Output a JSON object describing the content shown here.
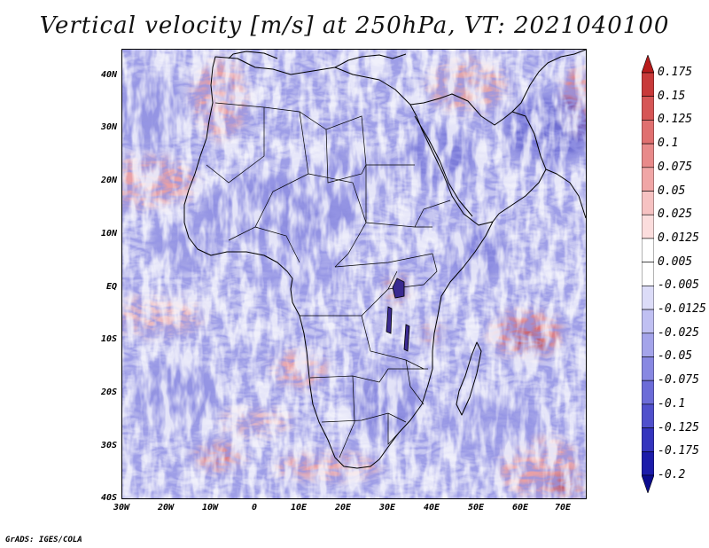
{
  "title": "Vertical velocity [m/s] at 250hPa, VT: 2021040100",
  "credit": "GrADS: IGES/COLA",
  "latitude_labels": [
    "40N",
    "30N",
    "20N",
    "10N",
    "EQ",
    "10S",
    "20S",
    "30S",
    "40S"
  ],
  "longitude_labels": [
    "30W",
    "20W",
    "10W",
    "0",
    "10E",
    "20E",
    "30E",
    "40E",
    "50E",
    "60E",
    "70E"
  ],
  "colorbar": {
    "labels": [
      "0.175",
      "0.15",
      "0.125",
      "0.1",
      "0.075",
      "0.05",
      "0.025",
      "0.0125",
      "0.005",
      "-0.005",
      "-0.0125",
      "-0.025",
      "-0.05",
      "-0.075",
      "-0.1",
      "-0.125",
      "-0.175",
      "-0.2"
    ],
    "colors": [
      "#b81c1c",
      "#c83a3a",
      "#d65656",
      "#e07070",
      "#e88a8a",
      "#f0a6a6",
      "#f6c2c2",
      "#fbdddd",
      "#ffffff",
      "#ffffff",
      "#dcdcf8",
      "#c0c0f2",
      "#a4a4ea",
      "#8888e2",
      "#6c6cd8",
      "#5050cc",
      "#3434be",
      "#1c1caa",
      "#0c0c8e"
    ]
  },
  "map_colors": {
    "background": "#c9c9f2",
    "strong_up": "#b02020",
    "up": "#e88a8a",
    "down": "#5555cc",
    "strong_down": "#2a2aa8",
    "boundary": "#000000"
  }
}
